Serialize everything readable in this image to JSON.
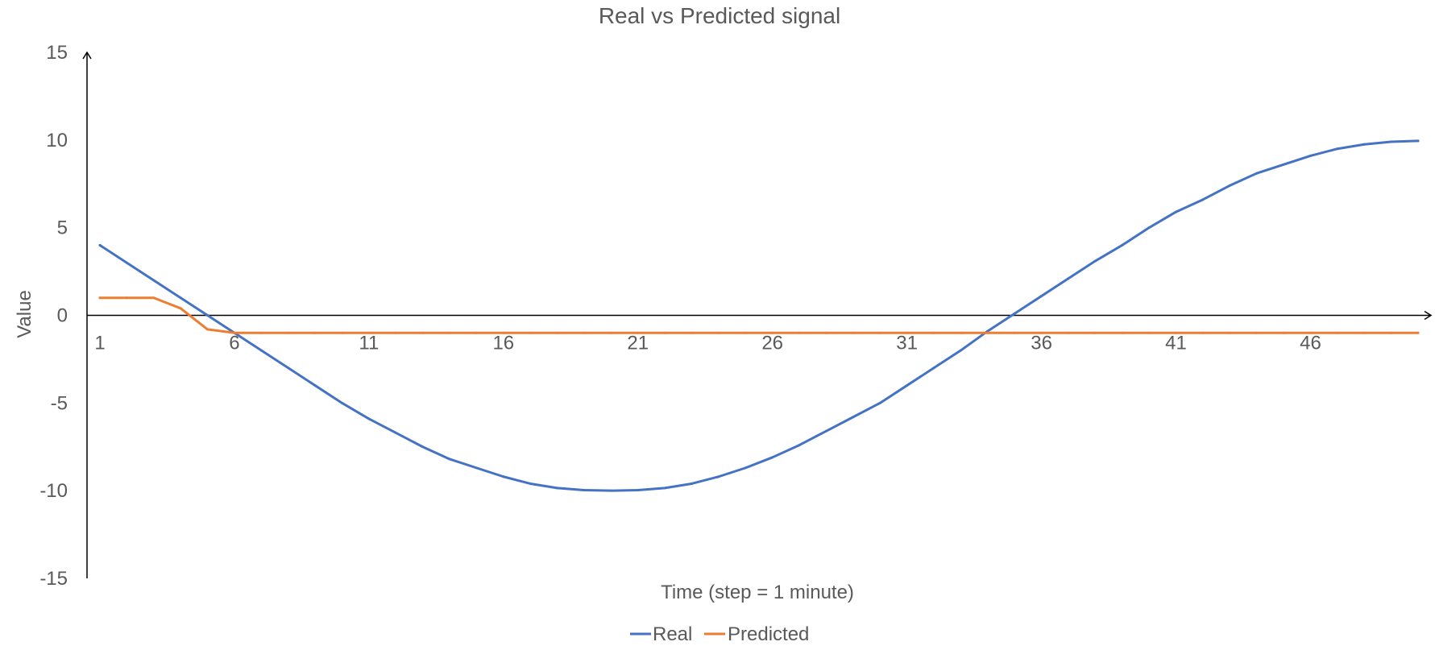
{
  "chart_data": {
    "type": "line",
    "title": "Real vs Predicted signal",
    "xlabel": "Time (step = 1 minute)",
    "ylabel": "Value",
    "x": [
      1,
      2,
      3,
      4,
      5,
      6,
      7,
      8,
      9,
      10,
      11,
      12,
      13,
      14,
      15,
      16,
      17,
      18,
      19,
      20,
      21,
      22,
      23,
      24,
      25,
      26,
      27,
      28,
      29,
      30,
      31,
      32,
      33,
      34,
      35,
      36,
      37,
      38,
      39,
      40,
      41,
      42,
      43,
      44,
      45,
      46,
      47,
      48,
      49,
      50
    ],
    "xticks": [
      "1",
      "6",
      "11",
      "16",
      "21",
      "26",
      "31",
      "36",
      "41",
      "46"
    ],
    "xtick_values": [
      1,
      6,
      11,
      16,
      21,
      26,
      31,
      36,
      41,
      46
    ],
    "ylim": [
      -15,
      15
    ],
    "yticks": [
      15,
      10,
      5,
      0,
      -5,
      -10,
      -15
    ],
    "grid": false,
    "legend_position": "bottom",
    "series": [
      {
        "name": "Real",
        "color": "#4472C4",
        "values": [
          4.0,
          3.0,
          2.0,
          1.0,
          0.0,
          -1.0,
          -2.0,
          -3.0,
          -4.0,
          -5.0,
          -5.9,
          -6.7,
          -7.5,
          -8.2,
          -8.7,
          -9.2,
          -9.6,
          -9.85,
          -9.97,
          -10.0,
          -9.97,
          -9.85,
          -9.6,
          -9.2,
          -8.7,
          -8.1,
          -7.4,
          -6.6,
          -5.8,
          -5.0,
          -4.0,
          -3.0,
          -2.0,
          -0.9,
          0.1,
          1.1,
          2.1,
          3.1,
          4.0,
          5.0,
          5.9,
          6.6,
          7.4,
          8.1,
          8.6,
          9.1,
          9.5,
          9.75,
          9.9,
          9.95
        ]
      },
      {
        "name": "Predicted",
        "color": "#ED7D31",
        "values": [
          1.0,
          1.0,
          1.0,
          0.4,
          -0.8,
          -1.0,
          -1.0,
          -1.0,
          -1.0,
          -1.0,
          -1.0,
          -1.0,
          -1.0,
          -1.0,
          -1.0,
          -1.0,
          -1.0,
          -1.0,
          -1.0,
          -1.0,
          -1.0,
          -1.0,
          -1.0,
          -1.0,
          -1.0,
          -1.0,
          -1.0,
          -1.0,
          -1.0,
          -1.0,
          -1.0,
          -1.0,
          -1.0,
          -1.0,
          -1.0,
          -1.0,
          -1.0,
          -1.0,
          -1.0,
          -1.0,
          -1.0,
          -1.0,
          -1.0,
          -1.0,
          -1.0,
          -1.0,
          -1.0,
          -1.0,
          -1.0,
          -1.0
        ]
      }
    ]
  }
}
